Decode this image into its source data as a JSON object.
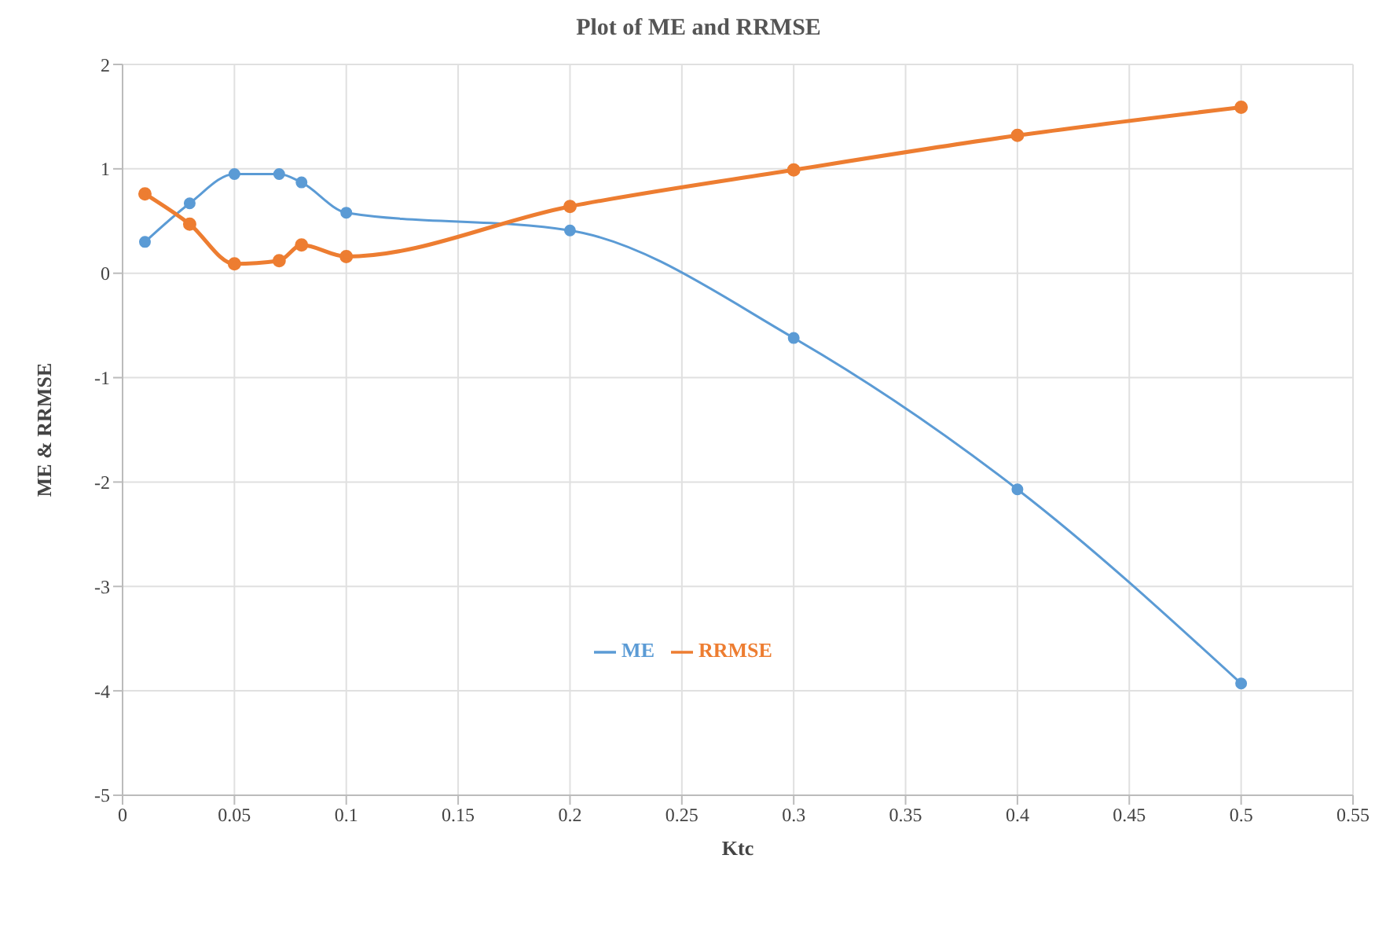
{
  "chart_data": {
    "type": "line",
    "title": "Plot of ME and RRMSE",
    "xlabel": "Ktc",
    "ylabel": "ME & RRMSE",
    "x": [
      0.01,
      0.03,
      0.05,
      0.07,
      0.08,
      0.1,
      0.2,
      0.3,
      0.4,
      0.5
    ],
    "series": [
      {
        "name": "ME",
        "color": "#5b9bd5",
        "values": [
          0.3,
          0.67,
          0.95,
          0.95,
          0.87,
          0.58,
          0.41,
          -0.62,
          -2.07,
          -3.93
        ]
      },
      {
        "name": "RRMSE",
        "color": "#ed7d31",
        "values": [
          0.76,
          0.47,
          0.09,
          0.12,
          0.27,
          0.16,
          0.64,
          0.99,
          1.32,
          1.59
        ]
      }
    ],
    "xlim": [
      0,
      0.55
    ],
    "xticks": [
      0,
      0.05,
      0.1,
      0.15,
      0.2,
      0.25,
      0.3,
      0.35,
      0.4,
      0.45,
      0.5,
      0.55
    ],
    "ylim": [
      -5,
      2
    ],
    "yticks": [
      -5,
      -4,
      -3,
      -2,
      -1,
      0,
      1,
      2
    ],
    "grid": true,
    "legend": "bottom",
    "marker": "circle",
    "line_style": "solid"
  }
}
